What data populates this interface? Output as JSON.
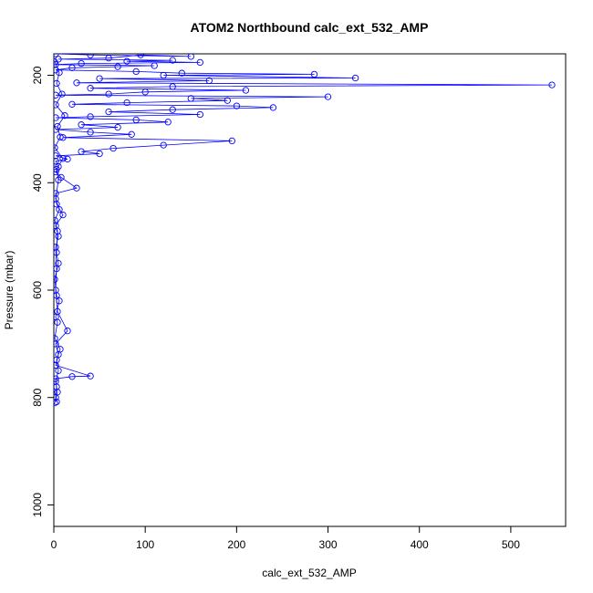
{
  "chart_data": {
    "type": "scatter",
    "title": "ATOM2 Northbound calc_ext_532_AMP",
    "xlabel": "calc_ext_532_AMP",
    "ylabel": "Pressure (mbar)",
    "xlim": [
      0,
      560
    ],
    "ylim": [
      1040,
      160
    ],
    "y_reversed": true,
    "x_ticks": [
      0,
      100,
      200,
      300,
      400,
      500
    ],
    "y_ticks": [
      200,
      400,
      600,
      800,
      1000
    ],
    "grid": false,
    "legend": "none",
    "marker": "open-circle",
    "connected": true,
    "series_color": "#0000ff",
    "series": [
      {
        "points": [
          [
            2,
            160
          ],
          [
            40,
            162
          ],
          [
            150,
            165
          ],
          [
            95,
            162
          ],
          [
            60,
            168
          ],
          [
            5,
            170
          ],
          [
            130,
            172
          ],
          [
            80,
            174
          ],
          [
            160,
            176
          ],
          [
            30,
            178
          ],
          [
            2,
            180
          ],
          [
            110,
            182
          ],
          [
            70,
            184
          ],
          [
            20,
            186
          ],
          [
            2,
            190
          ],
          [
            90,
            193
          ],
          [
            140,
            196
          ],
          [
            285,
            198
          ],
          [
            120,
            200
          ],
          [
            330,
            205
          ],
          [
            50,
            206
          ],
          [
            170,
            210
          ],
          [
            25,
            214
          ],
          [
            545,
            218
          ],
          [
            130,
            221
          ],
          [
            40,
            224
          ],
          [
            210,
            228
          ],
          [
            100,
            231
          ],
          [
            60,
            235
          ],
          [
            2,
            237
          ],
          [
            300,
            240
          ],
          [
            150,
            243
          ],
          [
            190,
            247
          ],
          [
            80,
            251
          ],
          [
            20,
            254
          ],
          [
            200,
            257
          ],
          [
            240,
            260
          ],
          [
            130,
            264
          ],
          [
            60,
            268
          ],
          [
            160,
            273
          ],
          [
            40,
            277
          ],
          [
            2,
            279
          ],
          [
            90,
            283
          ],
          [
            125,
            287
          ],
          [
            30,
            292
          ],
          [
            70,
            297
          ],
          [
            2,
            301
          ],
          [
            40,
            306
          ],
          [
            85,
            310
          ],
          [
            10,
            316
          ],
          [
            195,
            322
          ],
          [
            120,
            330
          ],
          [
            65,
            336
          ],
          [
            30,
            342
          ],
          [
            50,
            346
          ],
          [
            2,
            350
          ],
          [
            15,
            356
          ],
          [
            2,
            360
          ],
          [
            5,
            370
          ],
          [
            2,
            380
          ],
          [
            8,
            390
          ],
          [
            25,
            410
          ],
          [
            2,
            420
          ],
          [
            3,
            440
          ],
          [
            10,
            460
          ],
          [
            2,
            480
          ],
          [
            5,
            500
          ],
          [
            2,
            520
          ],
          [
            3,
            560
          ],
          [
            2,
            600
          ],
          [
            4,
            640
          ],
          [
            15,
            676
          ],
          [
            2,
            700
          ],
          [
            5,
            720
          ],
          [
            2,
            740
          ],
          [
            40,
            760
          ],
          [
            20,
            761
          ],
          [
            2,
            765
          ],
          [
            3,
            780
          ],
          [
            2,
            800
          ],
          [
            3,
            808
          ]
        ]
      },
      {
        "points": [
          [
            1,
            175
          ],
          [
            6,
            195
          ],
          [
            3,
            215
          ],
          [
            9,
            235
          ],
          [
            2,
            255
          ],
          [
            12,
            275
          ],
          [
            4,
            295
          ],
          [
            7,
            315
          ],
          [
            1,
            335
          ],
          [
            10,
            355
          ],
          [
            3,
            375
          ],
          [
            5,
            395
          ],
          [
            2,
            430
          ],
          [
            6,
            450
          ],
          [
            1,
            470
          ],
          [
            4,
            490
          ],
          [
            3,
            530
          ],
          [
            5,
            550
          ],
          [
            1,
            580
          ],
          [
            3,
            610
          ],
          [
            6,
            620
          ],
          [
            2,
            650
          ],
          [
            4,
            660
          ],
          [
            1,
            690
          ],
          [
            7,
            710
          ],
          [
            3,
            730
          ],
          [
            5,
            750
          ],
          [
            2,
            770
          ],
          [
            4,
            790
          ],
          [
            1,
            810
          ]
        ]
      }
    ]
  }
}
